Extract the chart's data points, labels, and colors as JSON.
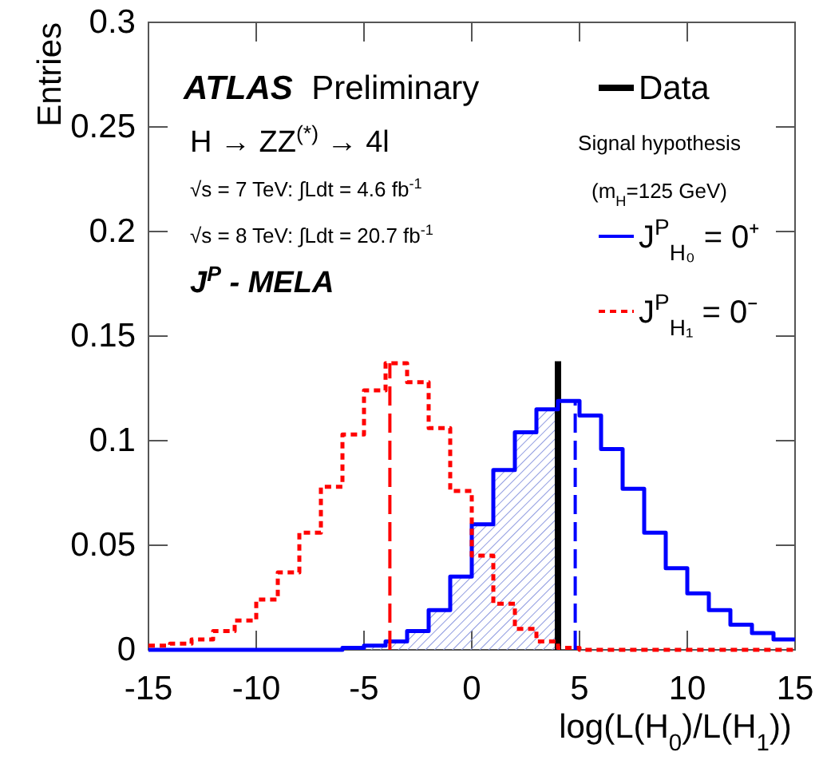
{
  "chart_data": {
    "type": "histogram",
    "xlabel": "log(L(H$_{0}$)/L(H$_{1}$))",
    "ylabel": "Entries",
    "legend_title": "Signal hypothesis (m$_{H}$=125 GeV)",
    "annotations": [
      "ATLAS Preliminary",
      "H → ZZ$^{(*)}$ → 4l",
      "√s = 7 TeV: ∫Ldt = 4.6 fb$^{-1}$",
      "√s = 8 TeV: ∫Ldt = 20.7 fb$^{-1}$",
      "J$^{P}$ - MELA"
    ],
    "bins": [
      -15,
      -14,
      -13,
      -12,
      -11,
      -10,
      -9,
      -8,
      -7,
      -6,
      -5,
      -4,
      -3,
      -2,
      -1,
      0,
      1,
      2,
      3,
      4,
      5,
      6,
      7,
      8,
      9,
      10,
      11,
      12,
      13,
      14,
      15
    ],
    "series": [
      {
        "type": "line",
        "name": "Data",
        "color": "#000000",
        "x": [
          4,
          4
        ],
        "values": [
          0,
          0.138
        ]
      },
      {
        "name": "J$^{P}$$_{H₀}$ = 0⁺",
        "color": "#0000ff",
        "line_style": "solid",
        "values": [
          0,
          0,
          0,
          0,
          0,
          0,
          0,
          0,
          0,
          0.001,
          0.002,
          0.004,
          0.009,
          0.019,
          0.035,
          0.06,
          0.086,
          0.104,
          0.115,
          0.119,
          0.112,
          0.096,
          0.077,
          0.056,
          0.039,
          0.027,
          0.019,
          0.012,
          0.008,
          0.005
        ]
      },
      {
        "name": "J$^{P}$$_{H₁}$ = 0⁻",
        "color": "#ff0000",
        "line_style": "dashed",
        "values": [
          0.002,
          0.003,
          0.005,
          0.009,
          0.014,
          0.024,
          0.037,
          0.056,
          0.078,
          0.103,
          0.124,
          0.137,
          0.128,
          0.106,
          0.076,
          0.045,
          0.022,
          0.01,
          0.004,
          0.001,
          0,
          0,
          0,
          0,
          0,
          0,
          0,
          0,
          0,
          0
        ]
      },
      {
        "type": "line",
        "color": "#ff0000",
        "line_style": "dashed",
        "x": [
          -3.8,
          -3.8
        ],
        "values": [
          0,
          0.137
        ]
      },
      {
        "type": "line",
        "color": "#0000ff",
        "line_style": "dashed",
        "x": [
          4.8,
          4.8
        ],
        "values": [
          0,
          0.119
        ]
      }
    ],
    "xlim": [
      -15,
      15
    ],
    "xticks": [
      -15,
      -10,
      -5,
      0,
      5,
      10,
      15
    ],
    "ylim": [
      0,
      0.3
    ],
    "yticks": [
      0,
      0.05,
      0.1,
      0.15,
      0.2,
      0.25,
      0.3
    ],
    "legend": "top right",
    "grid": false
  }
}
